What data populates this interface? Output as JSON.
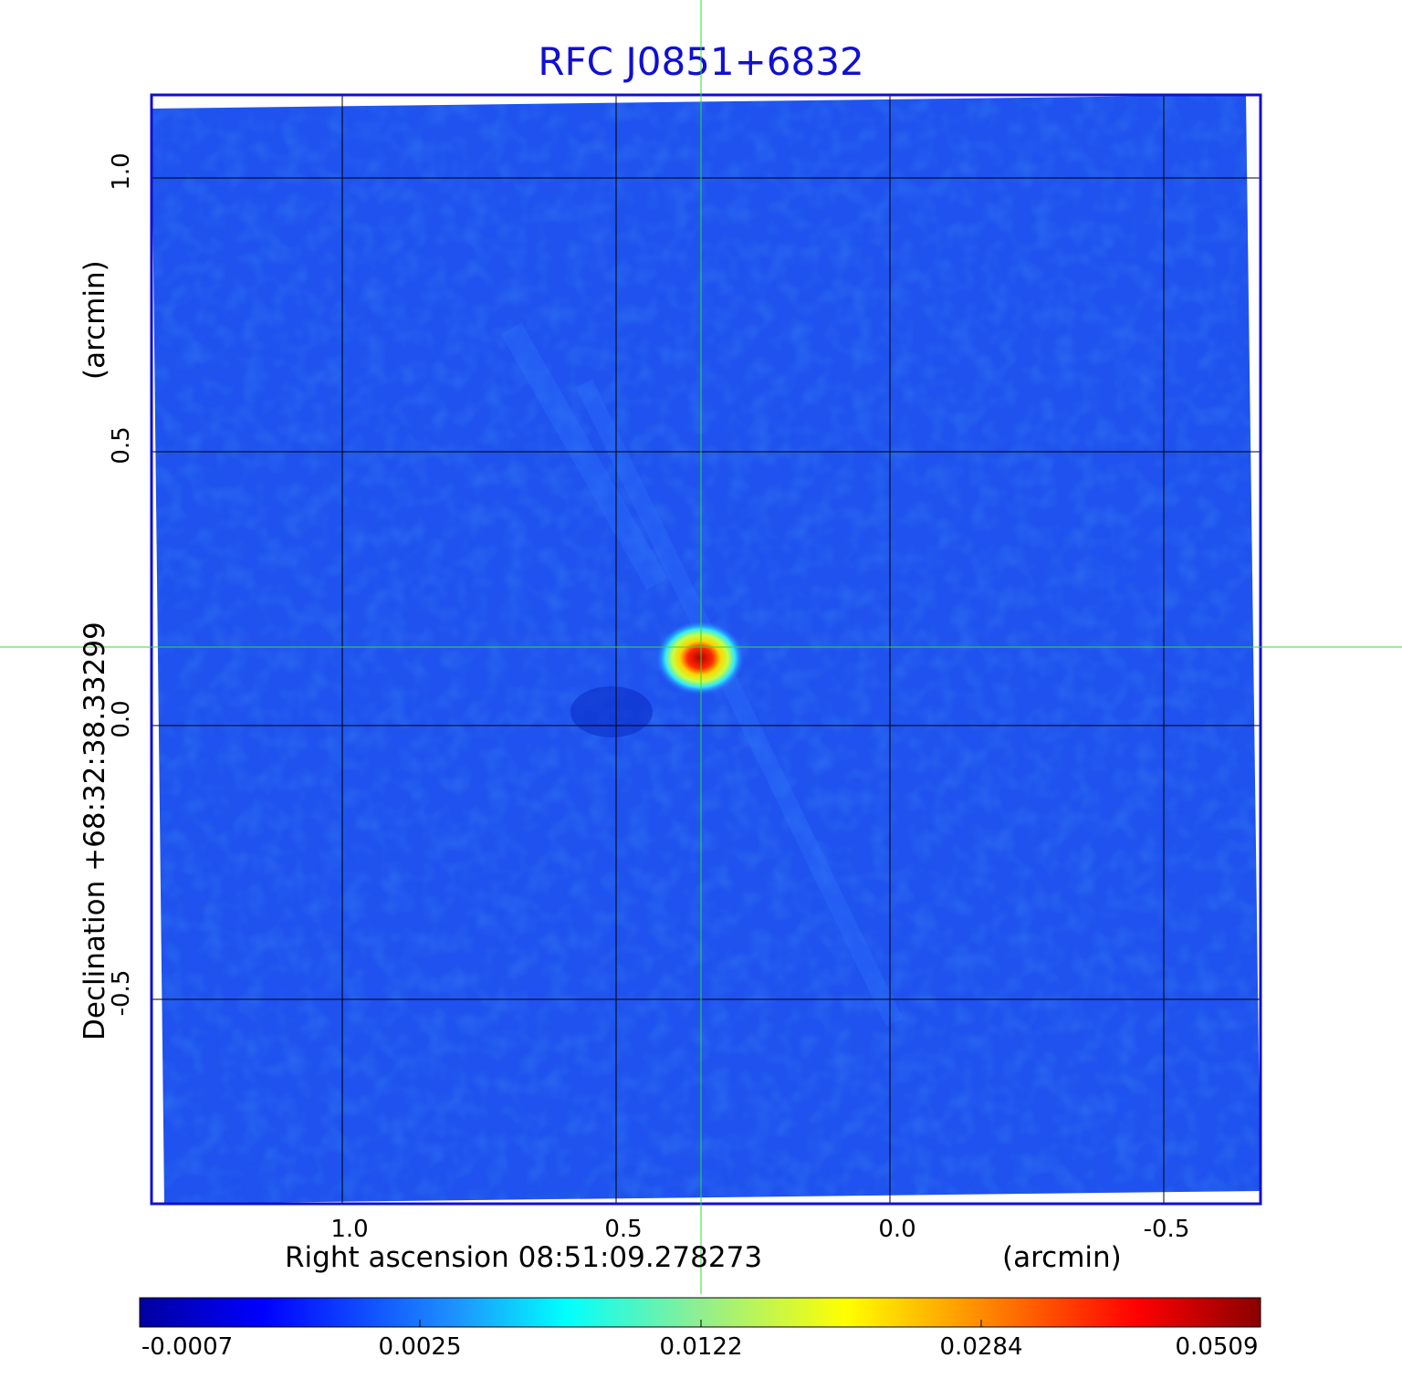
{
  "title": "RFC J0851+6832",
  "x_axis": {
    "label": "Right ascension  08:51:09.278273",
    "unit": "(arcmin)",
    "ticks": [
      "1.0",
      "0.5",
      "0.0",
      "-0.5"
    ]
  },
  "y_axis": {
    "label": "Declination  +68:32:38.33299",
    "unit": "(arcmin)",
    "ticks": [
      "1.0",
      "0.5",
      "0.0",
      "-0.5"
    ]
  },
  "colorbar": {
    "labels": [
      "-0.0007",
      "0.0025",
      "0.0122",
      "0.0284",
      "0.0509"
    ],
    "colormap": "jet"
  },
  "colors": {
    "frame": "#1010d0",
    "crosshair": "#33dd33",
    "grid": "#000000"
  }
}
